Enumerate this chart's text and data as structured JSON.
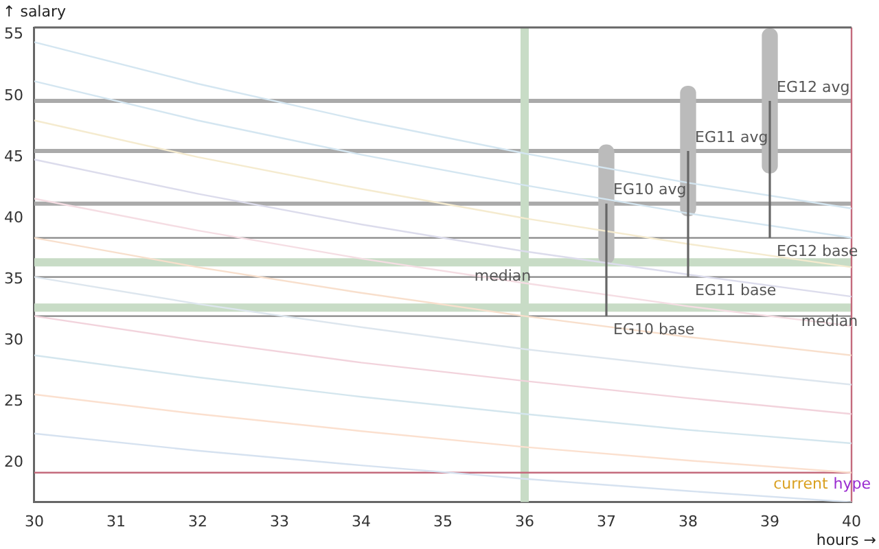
{
  "chart_data": {
    "type": "line",
    "xlabel": "hours →",
    "ylabel": "↑ salary",
    "xlim": [
      30,
      40
    ],
    "xticks": [
      30,
      31,
      32,
      33,
      34,
      35,
      36,
      37,
      38,
      39,
      40
    ],
    "ylim": [
      16.8,
      55.6
    ],
    "yticks": [
      20,
      25,
      30,
      35,
      40,
      45,
      50,
      55
    ],
    "grid": false,
    "legend": false,
    "marker": "none",
    "series": [
      {
        "type": "line",
        "color": "#d4e6f1",
        "x": [
          30,
          32,
          34,
          36,
          38,
          40
        ],
        "values": [
          54.4,
          51.0,
          48.0,
          45.3,
          42.9,
          40.8
        ]
      },
      {
        "type": "line",
        "color": "#d4e6f1",
        "x": [
          30,
          32,
          34,
          36,
          38,
          40
        ],
        "values": [
          51.2,
          48.0,
          45.2,
          42.7,
          40.4,
          38.4
        ]
      },
      {
        "type": "line",
        "color": "#f5ebcf",
        "x": [
          30,
          32,
          34,
          36,
          38,
          40
        ],
        "values": [
          48.0,
          45.0,
          42.4,
          40.0,
          37.9,
          36.0
        ]
      },
      {
        "type": "line",
        "color": "#dcdcec",
        "x": [
          30,
          32,
          34,
          36,
          38,
          40
        ],
        "values": [
          44.8,
          42.0,
          39.5,
          37.3,
          35.4,
          33.6
        ]
      },
      {
        "type": "line",
        "color": "#f5dde3",
        "x": [
          30,
          32,
          34,
          36,
          38,
          40
        ],
        "values": [
          41.6,
          39.0,
          36.7,
          34.7,
          32.8,
          31.2
        ]
      },
      {
        "type": "line",
        "color": "#f8dfcc",
        "x": [
          30,
          32,
          34,
          36,
          38,
          40
        ],
        "values": [
          38.4,
          36.0,
          33.9,
          32.0,
          30.3,
          28.8
        ]
      },
      {
        "type": "line",
        "color": "#dde6ee",
        "x": [
          30,
          32,
          34,
          36,
          38,
          40
        ],
        "values": [
          35.2,
          33.0,
          31.1,
          29.3,
          27.8,
          26.4
        ]
      },
      {
        "type": "line",
        "color": "#f2d3dc",
        "x": [
          30,
          32,
          34,
          36,
          38,
          40
        ],
        "values": [
          32.0,
          30.0,
          28.2,
          26.7,
          25.3,
          24.0
        ]
      },
      {
        "type": "line",
        "color": "#d4e6ee",
        "x": [
          30,
          32,
          34,
          36,
          38,
          40
        ],
        "values": [
          28.8,
          27.0,
          25.4,
          24.0,
          22.7,
          21.6
        ]
      },
      {
        "type": "line",
        "color": "#fbe0cf",
        "x": [
          30,
          32,
          34,
          36,
          38,
          40
        ],
        "values": [
          25.6,
          24.0,
          22.6,
          21.3,
          20.2,
          19.2
        ]
      },
      {
        "type": "line",
        "color": "#d6e2f0",
        "x": [
          30,
          32,
          34,
          36,
          38,
          40
        ],
        "values": [
          22.4,
          21.0,
          19.8,
          18.7,
          17.7,
          16.8
        ]
      },
      {
        "type": "bar",
        "color": "#bbbbbb",
        "x": [
          37,
          38,
          39
        ],
        "base": [
          36.3,
          40.2,
          43.7
        ],
        "values": [
          9.7,
          10.6,
          11.8
        ]
      },
      {
        "color": "#666666",
        "x": [
          37,
          37
        ],
        "values": [
          32,
          41.2
        ]
      },
      {
        "color": "#666666",
        "x": [
          38,
          38
        ],
        "values": [
          35.2,
          45.5
        ]
      },
      {
        "color": "#666666",
        "x": [
          39,
          39
        ],
        "values": [
          38.4,
          49.6
        ]
      }
    ],
    "ref_lines": [
      {
        "axis": "y",
        "value": 49.6,
        "color": "#aaaaaa"
      },
      {
        "axis": "y",
        "value": 45.5,
        "color": "#aaaaaa"
      },
      {
        "axis": "y",
        "value": 41.2,
        "color": "#aaaaaa"
      },
      {
        "axis": "y",
        "value": 38.4,
        "color": "#888888"
      },
      {
        "axis": "y",
        "value": 35.2,
        "color": "#888888"
      },
      {
        "axis": "y",
        "value": 32,
        "color": "#888888"
      },
      {
        "axis": "y",
        "value": 36.4,
        "color": "#c8dcc6"
      },
      {
        "axis": "y",
        "value": 32.7,
        "color": "#c8dcc6"
      },
      {
        "axis": "x",
        "value": 36,
        "color": "#c8dcc6"
      },
      {
        "axis": "y",
        "value": 19.2,
        "color": "#c46a7c"
      },
      {
        "axis": "x",
        "value": 40,
        "color": "#c46a7c"
      }
    ],
    "annotations": [
      {
        "text": "EG10 avg",
        "x": 37,
        "y": 41.2
      },
      {
        "text": "EG11 avg",
        "x": 38,
        "y": 45.5
      },
      {
        "text": "EG12 avg",
        "x": 39,
        "y": 49.6
      },
      {
        "text": "EG10 base",
        "x": 37,
        "y": 32
      },
      {
        "text": "EG11 base",
        "x": 38,
        "y": 35.2
      },
      {
        "text": "EG12 base",
        "x": 39,
        "y": 38.4
      },
      {
        "text": "median",
        "x": 35.3,
        "y": 36.4
      },
      {
        "text": "median",
        "x": 39.3,
        "y": 32.7
      },
      "current",
      "hype"
    ]
  }
}
